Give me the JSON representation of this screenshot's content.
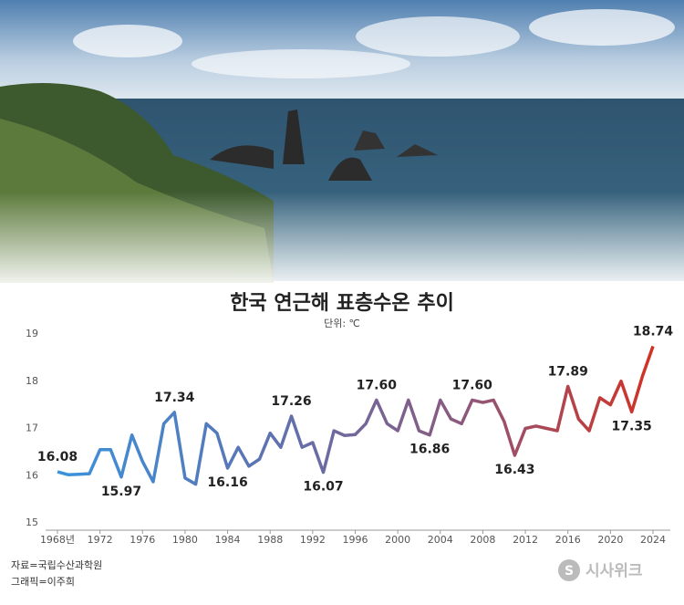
{
  "chart_data": {
    "type": "line",
    "title": "한국 연근해 표층수온 추이",
    "unit_label": "단위: ℃",
    "source": "자료=국립수산과학원",
    "credit": "그래픽=이주희",
    "brand": "시사위크",
    "x": [
      1968,
      1969,
      1970,
      1971,
      1972,
      1973,
      1974,
      1975,
      1976,
      1977,
      1978,
      1979,
      1980,
      1981,
      1982,
      1983,
      1984,
      1985,
      1986,
      1987,
      1988,
      1989,
      1990,
      1991,
      1992,
      1993,
      1994,
      1995,
      1996,
      1997,
      1998,
      1999,
      2000,
      2001,
      2002,
      2003,
      2004,
      2005,
      2006,
      2007,
      2008,
      2009,
      2010,
      2011,
      2012,
      2013,
      2014,
      2015,
      2016,
      2017,
      2018,
      2019,
      2020,
      2021,
      2022,
      2023,
      2024
    ],
    "series": [
      {
        "colors": [
          "#3a93dc",
          "#5b74b4",
          "#8a5a80",
          "#d23224"
        ],
        "values": [
          16.08,
          16.02,
          16.03,
          16.04,
          16.55,
          16.55,
          15.97,
          16.86,
          16.3,
          15.87,
          17.1,
          17.34,
          15.95,
          15.82,
          17.1,
          16.9,
          16.16,
          16.6,
          16.2,
          16.35,
          16.9,
          16.6,
          17.26,
          16.6,
          16.7,
          16.07,
          16.95,
          16.85,
          16.87,
          17.1,
          17.6,
          17.1,
          16.95,
          17.6,
          16.95,
          16.86,
          17.6,
          17.2,
          17.1,
          17.6,
          17.55,
          17.6,
          17.15,
          16.43,
          17.0,
          17.05,
          17.0,
          16.95,
          17.89,
          17.2,
          16.95,
          17.65,
          17.5,
          18.0,
          17.35,
          18.1,
          18.74
        ],
        "value_labels": [
          "16.08",
          null,
          null,
          null,
          null,
          null,
          "15.97",
          null,
          null,
          null,
          null,
          "17.34",
          null,
          null,
          null,
          null,
          "16.16",
          null,
          null,
          null,
          null,
          null,
          "17.26",
          null,
          null,
          "16.07",
          null,
          null,
          null,
          null,
          "17.60",
          null,
          null,
          null,
          null,
          "16.86",
          null,
          null,
          null,
          "17.60",
          null,
          null,
          null,
          "16.43",
          null,
          null,
          null,
          null,
          "17.89",
          null,
          null,
          null,
          null,
          null,
          "17.35",
          null,
          "18.74"
        ]
      }
    ],
    "xlim": [
      1968,
      2024
    ],
    "xticks": [
      {
        "value": 1968,
        "label": "1968년"
      },
      1972,
      1976,
      1980,
      1984,
      1988,
      1992,
      1996,
      2000,
      2004,
      2008,
      2012,
      2016,
      2020,
      2024
    ],
    "ylim": [
      15,
      19
    ],
    "yticks": [
      15,
      16,
      17,
      18,
      19
    ],
    "grid": false
  }
}
